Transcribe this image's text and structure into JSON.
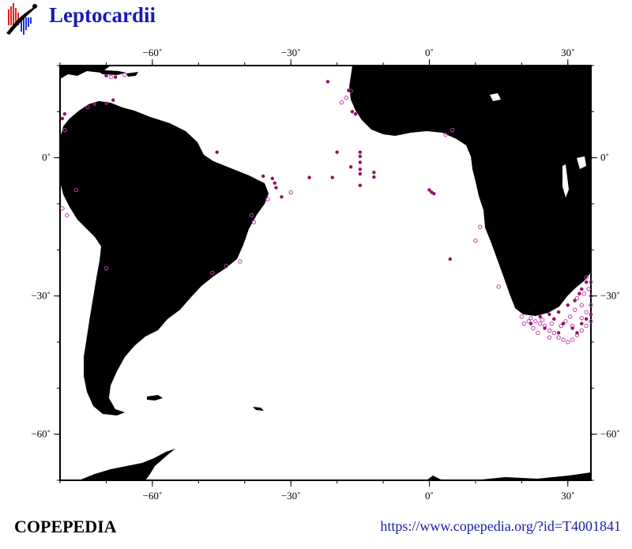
{
  "header": {
    "title": "Leptocardii"
  },
  "footer": {
    "brand": "COPEPEDIA",
    "url": "https://www.copepedia.org/?id=T4001841"
  },
  "map": {
    "lon_range": [
      -80,
      35
    ],
    "lat_range": [
      -70,
      20
    ],
    "lon_ticks": [
      {
        "value": -60,
        "label": "−60˚"
      },
      {
        "value": -30,
        "label": "−30˚"
      },
      {
        "value": 0,
        "label": "0˚"
      },
      {
        "value": 30,
        "label": "30˚"
      }
    ],
    "lat_ticks": [
      {
        "value": 0,
        "label": "0˚"
      },
      {
        "value": -30,
        "label": "−30˚"
      },
      {
        "value": -60,
        "label": "−60˚"
      }
    ],
    "colors": {
      "land": "#000000",
      "ocean": "#ffffff",
      "record_filled": "#9a0a6a",
      "record_open": "#c040b0"
    },
    "records_filled": [
      [
        -70,
        17.8
      ],
      [
        -68,
        17.5
      ],
      [
        -68.5,
        12.5
      ],
      [
        -70,
        11.8
      ],
      [
        -72.5,
        11.6
      ],
      [
        -79,
        9.5
      ],
      [
        -79.5,
        8.5
      ],
      [
        -46,
        1.2
      ],
      [
        -36,
        -4
      ],
      [
        -34,
        -4.5
      ],
      [
        -33.5,
        -5.5
      ],
      [
        -33.2,
        -6.5
      ],
      [
        -32,
        -8.5
      ],
      [
        -26,
        -4.3
      ],
      [
        -21,
        -4.3
      ],
      [
        -20,
        1.2
      ],
      [
        -17,
        -2
      ],
      [
        -15,
        1.2
      ],
      [
        -15,
        0.3
      ],
      [
        -15,
        -1
      ],
      [
        -15,
        -2.5
      ],
      [
        -15,
        -3.5
      ],
      [
        -15,
        -6
      ],
      [
        -12,
        -3.2
      ],
      [
        -12,
        -4.2
      ],
      [
        0,
        -7
      ],
      [
        0.5,
        -7.5
      ],
      [
        1,
        -7.8
      ],
      [
        4.5,
        -22
      ],
      [
        -17.5,
        14.6
      ],
      [
        -16,
        9.5
      ],
      [
        -16.7,
        10
      ],
      [
        -22,
        16.5
      ],
      [
        24,
        -34.5
      ],
      [
        26,
        -34
      ],
      [
        28,
        -33.5
      ],
      [
        30,
        -32
      ],
      [
        31.5,
        -31
      ],
      [
        32.5,
        -29.5
      ],
      [
        33,
        -28.5
      ],
      [
        34,
        -27
      ],
      [
        27,
        -35
      ],
      [
        29,
        -36
      ],
      [
        31,
        -37
      ],
      [
        33,
        -36
      ],
      [
        32,
        -38
      ],
      [
        34,
        -35
      ],
      [
        35,
        -34
      ],
      [
        22,
        -36
      ],
      [
        25,
        -37
      ],
      [
        28,
        -38
      ]
    ],
    "records_open": [
      [
        -69,
        17.5
      ],
      [
        -66,
        18
      ],
      [
        -74,
        11
      ],
      [
        -79,
        6
      ],
      [
        -76.5,
        -7
      ],
      [
        -79.5,
        -11
      ],
      [
        -78.5,
        -12.5
      ],
      [
        -70,
        -24
      ],
      [
        -47,
        -25
      ],
      [
        -44,
        -23.5
      ],
      [
        -41,
        -22.5
      ],
      [
        -38,
        -14
      ],
      [
        -35,
        -9
      ],
      [
        -38.5,
        -12.5
      ],
      [
        -30,
        -7.5
      ],
      [
        -17,
        14.5
      ],
      [
        -18,
        13
      ],
      [
        -19,
        12
      ],
      [
        3.5,
        5
      ],
      [
        5,
        6
      ],
      [
        11,
        -15
      ],
      [
        10,
        -18
      ],
      [
        15,
        -28
      ],
      [
        20,
        -34.5
      ],
      [
        22,
        -34.8
      ],
      [
        23,
        -35.5
      ],
      [
        24,
        -36
      ],
      [
        25,
        -36.5
      ],
      [
        26,
        -37.5
      ],
      [
        27,
        -38
      ],
      [
        28,
        -39
      ],
      [
        29,
        -39.5
      ],
      [
        30,
        -40
      ],
      [
        31,
        -39.5
      ],
      [
        32,
        -38.5
      ],
      [
        33,
        -37.5
      ],
      [
        34,
        -36.5
      ],
      [
        35,
        -35.5
      ],
      [
        34,
        -33.5
      ],
      [
        33,
        -32
      ],
      [
        32,
        -30.5
      ],
      [
        33.5,
        -29.5
      ],
      [
        34.5,
        -28.5
      ],
      [
        35,
        -27
      ],
      [
        34,
        -26
      ],
      [
        31.5,
        -33
      ],
      [
        30.5,
        -34.5
      ],
      [
        29.5,
        -35.5
      ],
      [
        28.5,
        -36.5
      ],
      [
        26.5,
        -36
      ],
      [
        24.5,
        -35.2
      ],
      [
        21.5,
        -35.5
      ],
      [
        20.5,
        -36
      ],
      [
        22.5,
        -37
      ],
      [
        23.5,
        -38
      ],
      [
        26,
        -39
      ],
      [
        31,
        -36.5
      ],
      [
        33,
        -34.8
      ],
      [
        35,
        -32
      ],
      [
        35,
        -30
      ]
    ]
  }
}
